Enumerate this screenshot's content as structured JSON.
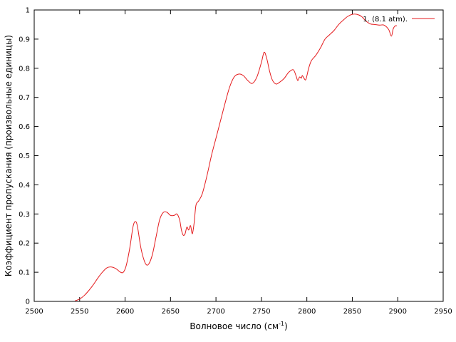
{
  "chart_data": {
    "type": "line",
    "title": "",
    "xlabel": "Волновое число (см",
    "xlabel_sup": "-1",
    "xlabel_end": ")",
    "ylabel": "Коэффициент пропускания (произвольные единицы)",
    "xlim": [
      2500,
      2950
    ],
    "ylim": [
      0,
      1
    ],
    "xticks": [
      2500,
      2550,
      2600,
      2650,
      2700,
      2750,
      2800,
      2850,
      2900,
      2950
    ],
    "yticks": [
      "0",
      "0.1",
      "0.2",
      "0.3",
      "0.4",
      "0.5",
      "0.6",
      "0.7",
      "0.8",
      "0.9",
      "1"
    ],
    "grid": false,
    "legend_position": "top-right",
    "series": [
      {
        "name": "1. (8.1 atm).",
        "color": "#e41a1c",
        "x": [
          2545,
          2550,
          2555,
          2560,
          2565,
          2570,
          2575,
          2580,
          2585,
          2590,
          2595,
          2598,
          2601,
          2605,
          2609,
          2612,
          2614,
          2617,
          2620,
          2623,
          2626,
          2630,
          2634,
          2638,
          2642,
          2646,
          2650,
          2654,
          2657,
          2660,
          2662,
          2664,
          2666,
          2668,
          2670,
          2672,
          2674,
          2676,
          2678,
          2681,
          2685,
          2690,
          2695,
          2700,
          2705,
          2710,
          2715,
          2720,
          2725,
          2730,
          2735,
          2740,
          2745,
          2750,
          2753,
          2756,
          2759,
          2762,
          2766,
          2770,
          2775,
          2780,
          2785,
          2788,
          2790,
          2792,
          2794,
          2795,
          2797,
          2799,
          2802,
          2805,
          2810,
          2815,
          2820,
          2825,
          2830,
          2835,
          2840,
          2845,
          2850,
          2855,
          2860,
          2865,
          2870,
          2875,
          2880,
          2885,
          2890,
          2893,
          2895,
          2897,
          2899
        ],
        "y": [
          0.002,
          0.008,
          0.02,
          0.037,
          0.057,
          0.08,
          0.1,
          0.115,
          0.118,
          0.112,
          0.1,
          0.1,
          0.12,
          0.18,
          0.26,
          0.273,
          0.25,
          0.19,
          0.15,
          0.127,
          0.128,
          0.16,
          0.22,
          0.28,
          0.305,
          0.306,
          0.295,
          0.295,
          0.3,
          0.28,
          0.245,
          0.227,
          0.232,
          0.255,
          0.245,
          0.26,
          0.232,
          0.27,
          0.33,
          0.345,
          0.37,
          0.43,
          0.5,
          0.56,
          0.62,
          0.68,
          0.735,
          0.77,
          0.78,
          0.775,
          0.758,
          0.748,
          0.77,
          0.82,
          0.855,
          0.832,
          0.79,
          0.76,
          0.746,
          0.752,
          0.765,
          0.786,
          0.795,
          0.775,
          0.758,
          0.77,
          0.766,
          0.775,
          0.765,
          0.762,
          0.8,
          0.826,
          0.845,
          0.87,
          0.9,
          0.915,
          0.93,
          0.95,
          0.965,
          0.978,
          0.985,
          0.985,
          0.978,
          0.962,
          0.952,
          0.95,
          0.948,
          0.948,
          0.933,
          0.91,
          0.935,
          0.945,
          0.946
        ]
      }
    ]
  }
}
